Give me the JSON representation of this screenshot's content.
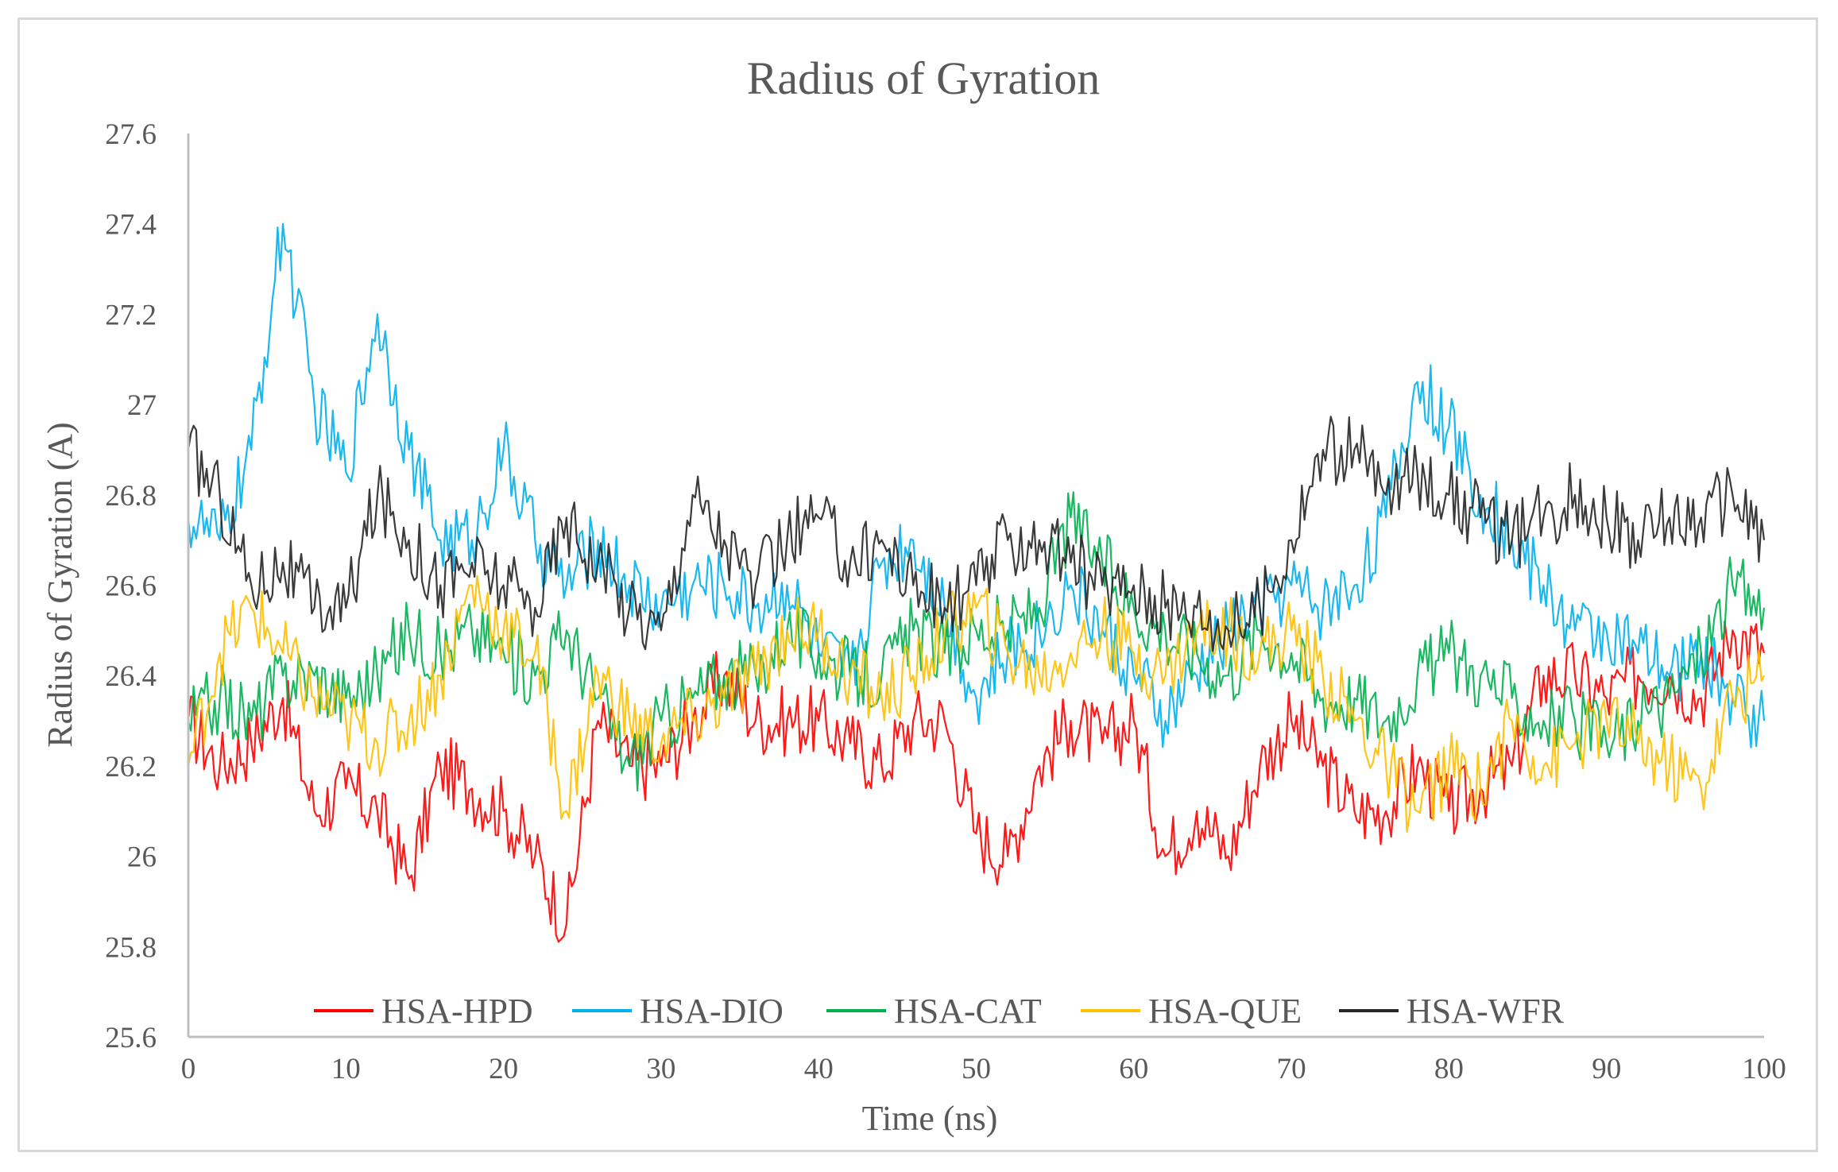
{
  "chart_data": {
    "type": "line",
    "title": "Radius of Gyration",
    "xlabel": "Time (ns)",
    "ylabel": "Radius of Gyration (A)",
    "xlim": [
      0,
      100
    ],
    "ylim": [
      25.6,
      27.6
    ],
    "x_ticks": [
      "0",
      "10",
      "20",
      "30",
      "40",
      "50",
      "60",
      "70",
      "80",
      "90",
      "100"
    ],
    "y_ticks": [
      "25.6",
      "25.8",
      "26",
      "26.2",
      "26.4",
      "26.6",
      "26.8",
      "27",
      "27.2",
      "27.4",
      "27.6"
    ],
    "grid": false,
    "legend_position": "bottom-inside",
    "x": [
      0,
      2,
      4,
      6,
      8,
      10,
      12,
      14,
      16,
      18,
      20,
      22,
      24,
      26,
      28,
      30,
      32,
      34,
      36,
      38,
      40,
      42,
      44,
      46,
      48,
      50,
      52,
      54,
      56,
      58,
      60,
      62,
      64,
      66,
      68,
      70,
      72,
      74,
      76,
      78,
      80,
      82,
      84,
      86,
      88,
      90,
      92,
      94,
      96,
      98,
      100
    ],
    "series": [
      {
        "name": "HSA-HPD",
        "color": "#ff0000",
        "values": [
          26.3,
          26.2,
          26.25,
          26.35,
          26.1,
          26.15,
          26.1,
          25.95,
          26.2,
          26.15,
          26.1,
          26.0,
          25.85,
          26.3,
          26.2,
          26.2,
          26.3,
          26.4,
          26.3,
          26.3,
          26.3,
          26.25,
          26.2,
          26.3,
          26.3,
          26.05,
          26.0,
          26.2,
          26.3,
          26.25,
          26.3,
          26.0,
          26.1,
          26.0,
          26.2,
          26.3,
          26.2,
          26.1,
          26.1,
          26.2,
          26.1,
          26.15,
          26.2,
          26.4,
          26.4,
          26.35,
          26.4,
          26.4,
          26.35,
          26.5,
          26.45
        ]
      },
      {
        "name": "HSA-DIO",
        "color": "#00b0f0",
        "values": [
          26.75,
          26.7,
          26.9,
          27.4,
          27.0,
          26.85,
          27.2,
          26.9,
          26.7,
          26.7,
          26.9,
          26.7,
          26.6,
          26.7,
          26.6,
          26.55,
          26.6,
          26.6,
          26.55,
          26.6,
          26.45,
          26.4,
          26.65,
          26.7,
          26.55,
          26.35,
          26.45,
          26.5,
          26.6,
          26.5,
          26.4,
          26.3,
          26.4,
          26.5,
          26.55,
          26.6,
          26.55,
          26.6,
          26.75,
          27.05,
          26.95,
          26.8,
          26.7,
          26.6,
          26.5,
          26.5,
          26.45,
          26.4,
          26.45,
          26.35,
          26.3
        ]
      },
      {
        "name": "HSA-CAT",
        "color": "#00b050",
        "values": [
          26.3,
          26.35,
          26.3,
          26.4,
          26.4,
          26.35,
          26.4,
          26.5,
          26.45,
          26.5,
          26.45,
          26.4,
          26.5,
          26.35,
          26.2,
          26.3,
          26.35,
          26.4,
          26.4,
          26.5,
          26.45,
          26.4,
          26.4,
          26.5,
          26.45,
          26.5,
          26.5,
          26.55,
          26.75,
          26.65,
          26.55,
          26.5,
          26.45,
          26.4,
          26.5,
          26.45,
          26.35,
          26.35,
          26.3,
          26.4,
          26.45,
          26.4,
          26.35,
          26.3,
          26.3,
          26.25,
          26.3,
          26.35,
          26.45,
          26.6,
          26.55
        ]
      },
      {
        "name": "HSA-QUE",
        "color": "#ffc000",
        "values": [
          26.2,
          26.45,
          26.55,
          26.45,
          26.35,
          26.3,
          26.25,
          26.3,
          26.4,
          26.6,
          26.5,
          26.45,
          26.1,
          26.4,
          26.3,
          26.25,
          26.3,
          26.35,
          26.4,
          26.5,
          26.5,
          26.4,
          26.35,
          26.4,
          26.5,
          26.55,
          26.45,
          26.4,
          26.45,
          26.5,
          26.45,
          26.4,
          26.5,
          26.5,
          26.45,
          26.5,
          26.4,
          26.3,
          26.2,
          26.1,
          26.2,
          26.15,
          26.3,
          26.2,
          26.25,
          26.3,
          26.25,
          26.2,
          26.15,
          26.35,
          26.4
        ]
      },
      {
        "name": "HSA-WFR",
        "color": "#262626",
        "values": [
          26.9,
          26.8,
          26.6,
          26.65,
          26.55,
          26.55,
          26.8,
          26.7,
          26.6,
          26.65,
          26.6,
          26.55,
          26.75,
          26.65,
          26.55,
          26.5,
          26.8,
          26.7,
          26.6,
          26.7,
          26.75,
          26.65,
          26.7,
          26.6,
          26.55,
          26.6,
          26.7,
          26.7,
          26.65,
          26.6,
          26.6,
          26.55,
          26.55,
          26.5,
          26.55,
          26.7,
          26.9,
          26.9,
          26.8,
          26.85,
          26.8,
          26.75,
          26.7,
          26.75,
          26.8,
          26.75,
          26.7,
          26.75,
          26.75,
          26.8,
          26.7
        ]
      }
    ]
  }
}
